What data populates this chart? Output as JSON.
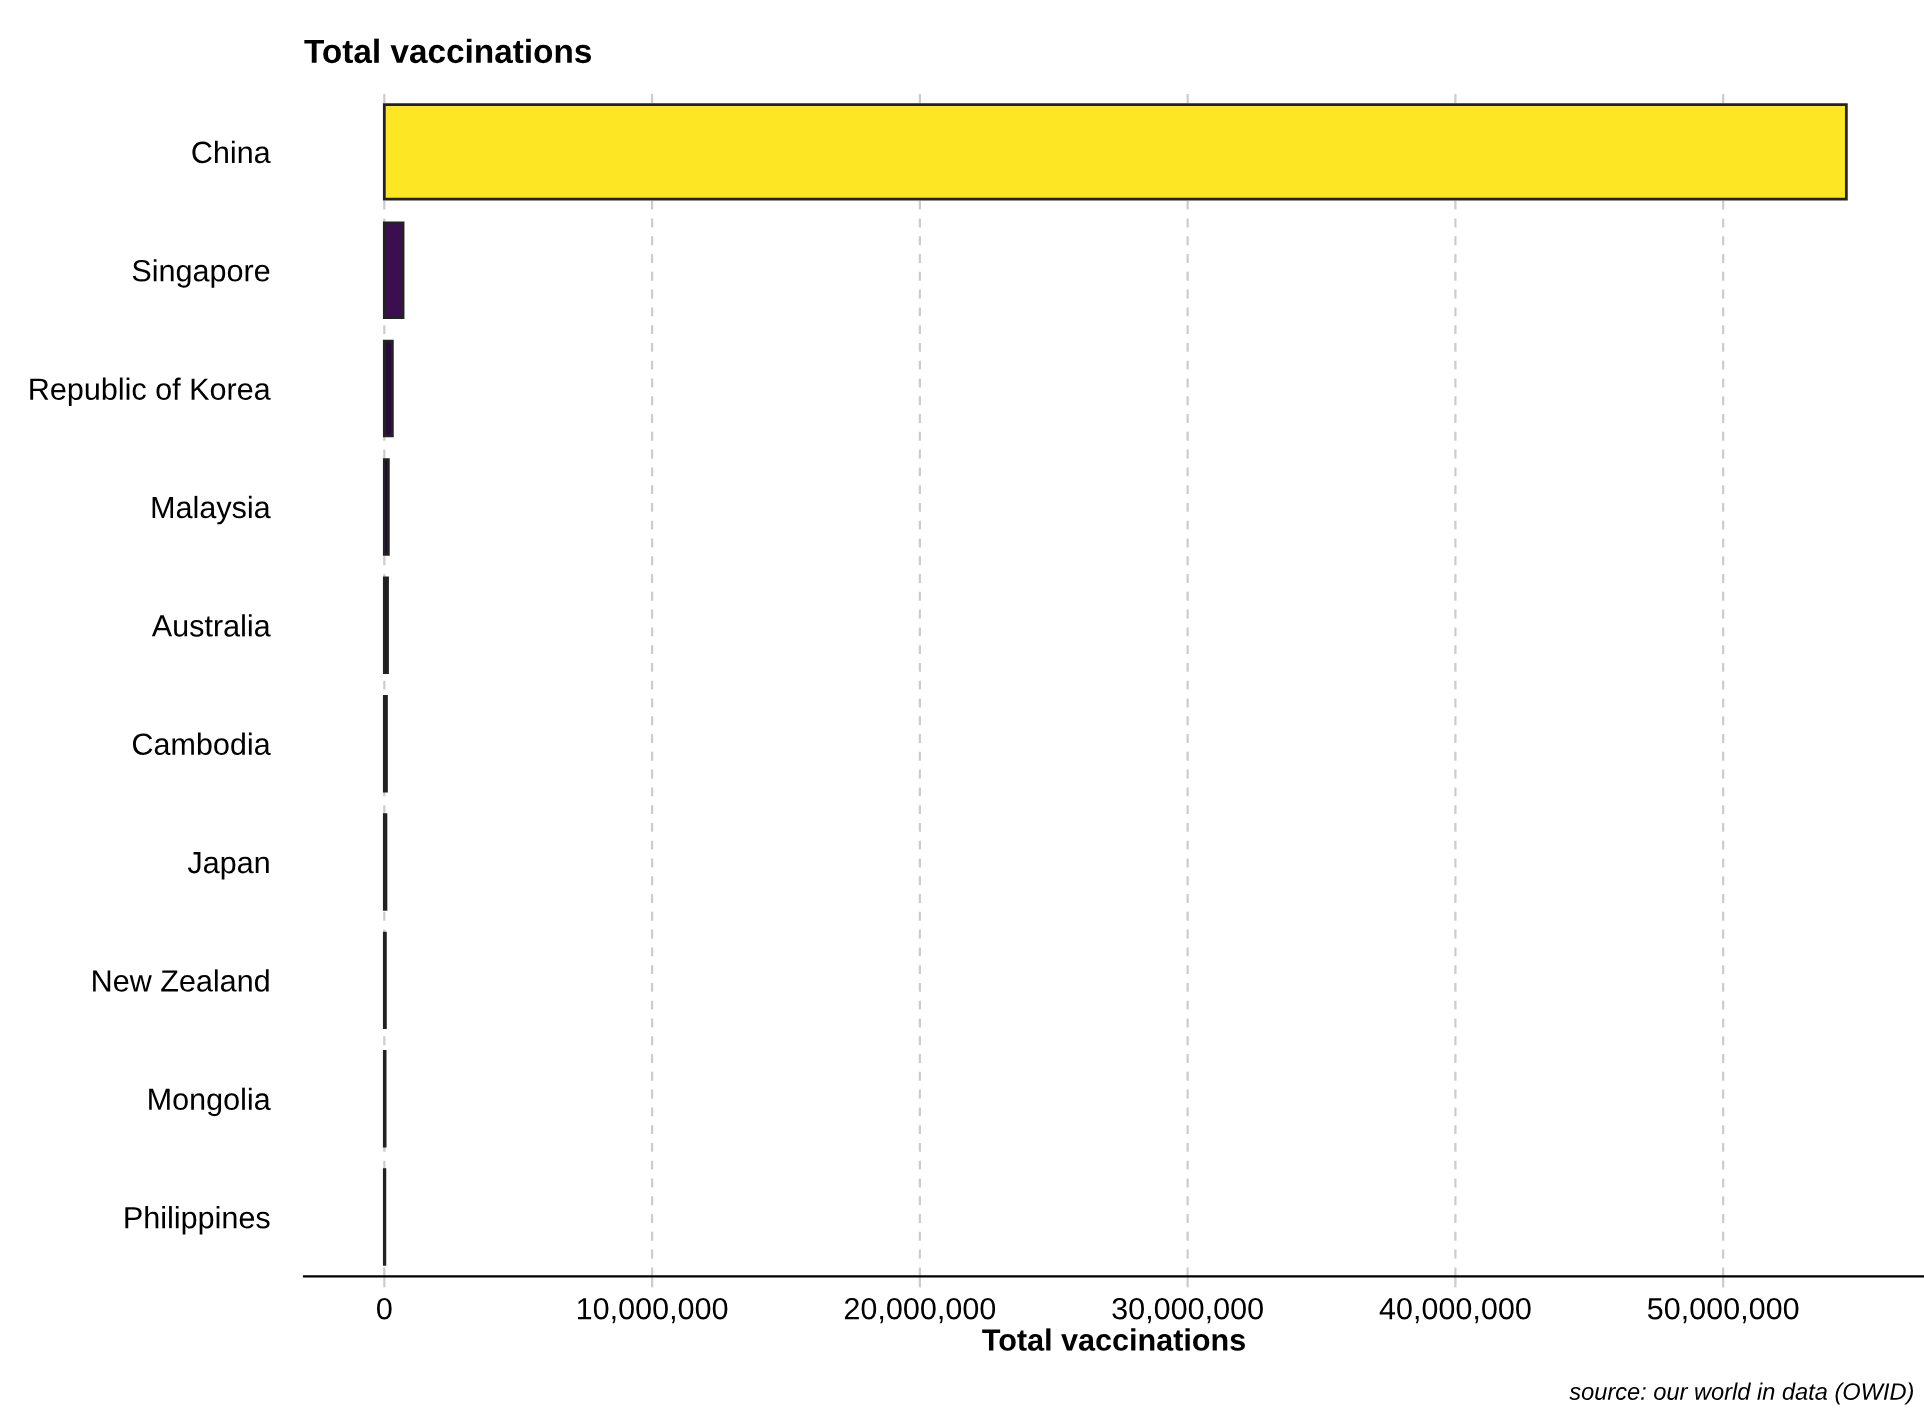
{
  "chart_data": {
    "type": "bar",
    "orientation": "horizontal",
    "title": "Total vaccinations",
    "xlabel": "Total vaccinations",
    "categories": [
      "China",
      "Singapore",
      "Republic of Korea",
      "Malaysia",
      "Australia",
      "Cambodia",
      "Japan",
      "New Zealand",
      "Mongolia",
      "Philippines"
    ],
    "values": [
      54600000,
      700000,
      300000,
      150000,
      120000,
      80000,
      60000,
      40000,
      30000,
      20000
    ],
    "colors": [
      "#fde725",
      "#3b0f4f",
      "#2a0a3a",
      "#1f0a2e",
      "#1f0a2e",
      "#1f0a2e",
      "#1f0a2e",
      "#1f0a2e",
      "#1f0a2e",
      "#1f0a2e"
    ],
    "xlim": [
      -3000000,
      57500000
    ],
    "xticks": [
      {
        "value": 0,
        "label": "0"
      },
      {
        "value": 10000000,
        "label": "10,000,000"
      },
      {
        "value": 20000000,
        "label": "20,000,000"
      },
      {
        "value": 30000000,
        "label": "30,000,000"
      },
      {
        "value": 40000000,
        "label": "40,000,000"
      },
      {
        "value": 50000000,
        "label": "50,000,000"
      }
    ],
    "grid": "x",
    "annotations": [
      "source: our world in data (OWID)"
    ]
  }
}
